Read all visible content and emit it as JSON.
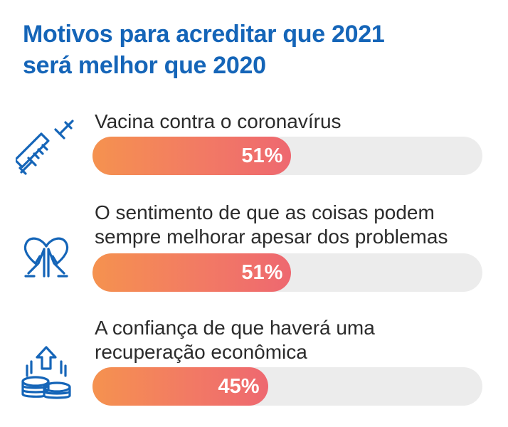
{
  "title": {
    "line1": "Motivos para acreditar que 2021",
    "line2": "será melhor que 2020"
  },
  "colors": {
    "title": "#1565b8",
    "icon": "#1565b8",
    "bar_start": "#f5924f",
    "bar_end": "#ee6870",
    "track": "#ececec"
  },
  "chart_data": {
    "type": "bar",
    "orientation": "horizontal",
    "unit": "%",
    "xlim": [
      0,
      100
    ],
    "categories": [
      "Vacina contra o coronavírus",
      "O sentimento de que as coisas podem sempre melhorar apesar dos problemas",
      "A confiança de que haverá uma recuperação econômica"
    ],
    "values": [
      51,
      51,
      45
    ],
    "data_labels": [
      "51%",
      "51%",
      "45%"
    ]
  },
  "items": [
    {
      "icon": "syringe-icon",
      "label_lines": [
        "Vacina contra o coronavírus"
      ]
    },
    {
      "icon": "praying-hands-heart-icon",
      "label_lines": [
        "O sentimento de que as coisas podem",
        "sempre melhorar apesar dos problemas"
      ]
    },
    {
      "icon": "coins-arrow-up-icon",
      "label_lines": [
        "A confiança de que haverá uma",
        "recuperação econômica"
      ]
    }
  ]
}
